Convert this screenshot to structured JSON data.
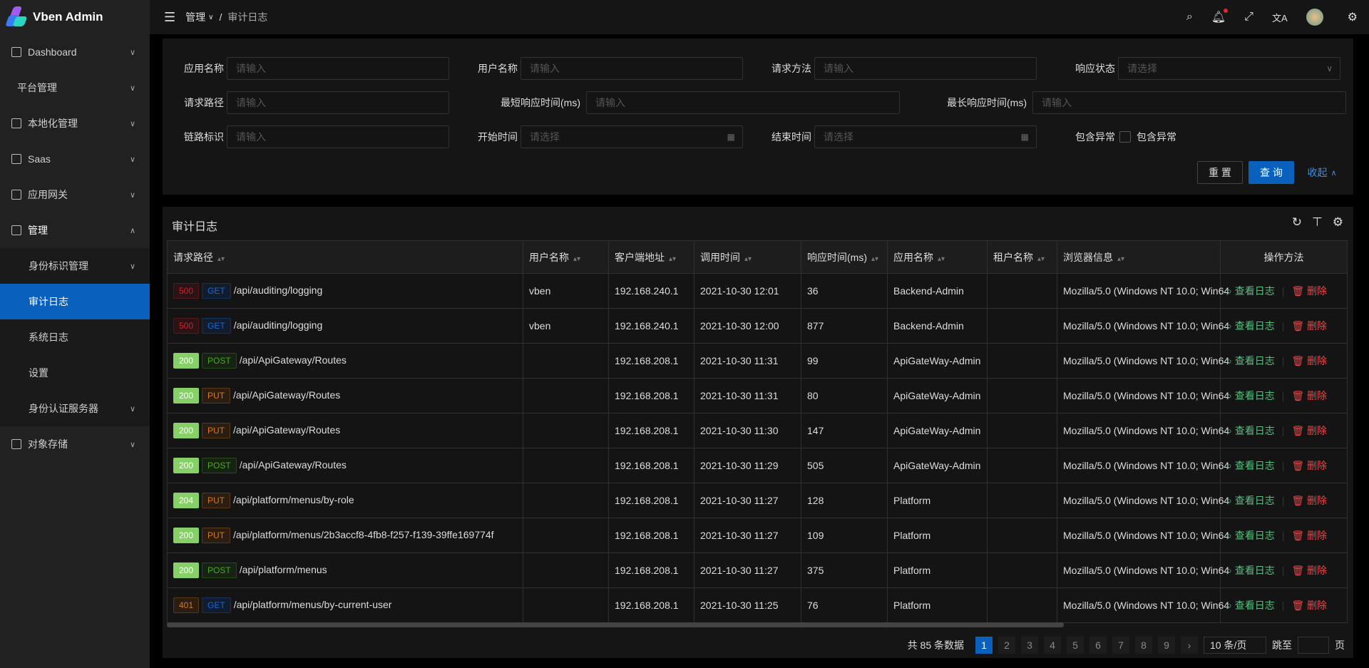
{
  "app": {
    "title": "Vben Admin"
  },
  "sidebar": {
    "items": [
      {
        "label": "Dashboard",
        "icon": "dashboard-icon"
      },
      {
        "label": "平台管理"
      },
      {
        "label": "本地化管理",
        "icon": "localization-icon"
      },
      {
        "label": "Saas",
        "icon": "saas-icon"
      },
      {
        "label": "应用网关",
        "icon": "gateway-icon"
      },
      {
        "label": "管理",
        "icon": "manage-icon",
        "open": true
      },
      {
        "label": "身份标识管理",
        "sub": true
      },
      {
        "label": "审计日志",
        "sub": true,
        "active": true
      },
      {
        "label": "系统日志",
        "sub": true
      },
      {
        "label": "设置",
        "sub": true
      },
      {
        "label": "身份认证服务器",
        "sub": true
      },
      {
        "label": "对象存储",
        "icon": "file-icon"
      }
    ]
  },
  "header": {
    "breadcrumb": [
      "管理",
      "审计日志"
    ]
  },
  "form": {
    "app_name": {
      "label": "应用名称",
      "placeholder": "请输入"
    },
    "user_name": {
      "label": "用户名称",
      "placeholder": "请输入"
    },
    "method": {
      "label": "请求方法",
      "placeholder": "请输入"
    },
    "status": {
      "label": "响应状态",
      "placeholder": "请选择"
    },
    "url": {
      "label": "请求路径",
      "placeholder": "请输入"
    },
    "min_time": {
      "label": "最短响应时间(ms)",
      "placeholder": "请输入"
    },
    "max_time": {
      "label": "最长响应时间(ms)",
      "placeholder": "请输入"
    },
    "correlation": {
      "label": "链路标识",
      "placeholder": "请输入"
    },
    "start": {
      "label": "开始时间",
      "placeholder": "请选择"
    },
    "end": {
      "label": "结束时间",
      "placeholder": "请选择"
    },
    "has_exception": {
      "label": "包含异常",
      "checkbox_label": "包含异常"
    },
    "reset": "重 置",
    "search": "查 询",
    "collapse": "收起"
  },
  "table": {
    "title": "审计日志",
    "columns": [
      "请求路径",
      "用户名称",
      "客户端地址",
      "调用时间",
      "响应时间(ms)",
      "应用名称",
      "租户名称",
      "浏览器信息",
      "操作方法"
    ],
    "view_label": "查看日志",
    "delete_label": "删除",
    "rows": [
      {
        "status": "500",
        "method": "GET",
        "url": "/api/auditing/logging",
        "user": "vben",
        "ip": "192.168.240.1",
        "time": "2021-10-30 12:01",
        "duration": "36",
        "app": "Backend-Admin",
        "tenant": "",
        "browser": "Mozilla/5.0 (Windows NT 10.0; Win64"
      },
      {
        "status": "500",
        "method": "GET",
        "url": "/api/auditing/logging",
        "user": "vben",
        "ip": "192.168.240.1",
        "time": "2021-10-30 12:00",
        "duration": "877",
        "app": "Backend-Admin",
        "tenant": "",
        "browser": "Mozilla/5.0 (Windows NT 10.0; Win64"
      },
      {
        "status": "200",
        "method": "POST",
        "url": "/api/ApiGateway/Routes",
        "user": "",
        "ip": "192.168.208.1",
        "time": "2021-10-30 11:31",
        "duration": "99",
        "app": "ApiGateWay-Admin",
        "tenant": "",
        "browser": "Mozilla/5.0 (Windows NT 10.0; Win64"
      },
      {
        "status": "200",
        "method": "PUT",
        "url": "/api/ApiGateway/Routes",
        "user": "",
        "ip": "192.168.208.1",
        "time": "2021-10-30 11:31",
        "duration": "80",
        "app": "ApiGateWay-Admin",
        "tenant": "",
        "browser": "Mozilla/5.0 (Windows NT 10.0; Win64"
      },
      {
        "status": "200",
        "method": "PUT",
        "url": "/api/ApiGateway/Routes",
        "user": "",
        "ip": "192.168.208.1",
        "time": "2021-10-30 11:30",
        "duration": "147",
        "app": "ApiGateWay-Admin",
        "tenant": "",
        "browser": "Mozilla/5.0 (Windows NT 10.0; Win64"
      },
      {
        "status": "200",
        "method": "POST",
        "url": "/api/ApiGateway/Routes",
        "user": "",
        "ip": "192.168.208.1",
        "time": "2021-10-30 11:29",
        "duration": "505",
        "app": "ApiGateWay-Admin",
        "tenant": "",
        "browser": "Mozilla/5.0 (Windows NT 10.0; Win64"
      },
      {
        "status": "204",
        "method": "PUT",
        "url": "/api/platform/menus/by-role",
        "user": "",
        "ip": "192.168.208.1",
        "time": "2021-10-30 11:27",
        "duration": "128",
        "app": "Platform",
        "tenant": "",
        "browser": "Mozilla/5.0 (Windows NT 10.0; Win64"
      },
      {
        "status": "200",
        "method": "PUT",
        "url": "/api/platform/menus/2b3accf8-4fb8-f257-f139-39ffe169774f",
        "user": "",
        "ip": "192.168.208.1",
        "time": "2021-10-30 11:27",
        "duration": "109",
        "app": "Platform",
        "tenant": "",
        "browser": "Mozilla/5.0 (Windows NT 10.0; Win64"
      },
      {
        "status": "200",
        "method": "POST",
        "url": "/api/platform/menus",
        "user": "",
        "ip": "192.168.208.1",
        "time": "2021-10-30 11:27",
        "duration": "375",
        "app": "Platform",
        "tenant": "",
        "browser": "Mozilla/5.0 (Windows NT 10.0; Win64"
      },
      {
        "status": "401",
        "method": "GET",
        "url": "/api/platform/menus/by-current-user",
        "user": "",
        "ip": "192.168.208.1",
        "time": "2021-10-30 11:25",
        "duration": "76",
        "app": "Platform",
        "tenant": "",
        "browser": "Mozilla/5.0 (Windows NT 10.0; Win64"
      }
    ]
  },
  "pagination": {
    "total_text": "共 85 条数据",
    "pages": [
      "1",
      "2",
      "3",
      "4",
      "5",
      "6",
      "7",
      "8",
      "9"
    ],
    "current": "1",
    "page_size": "10 条/页",
    "jump_label": "跳至",
    "page_suffix": "页"
  },
  "colors": {
    "accent": "#0960bd",
    "success": "#87d068",
    "danger": "#e84749",
    "warning": "#d87a16"
  }
}
